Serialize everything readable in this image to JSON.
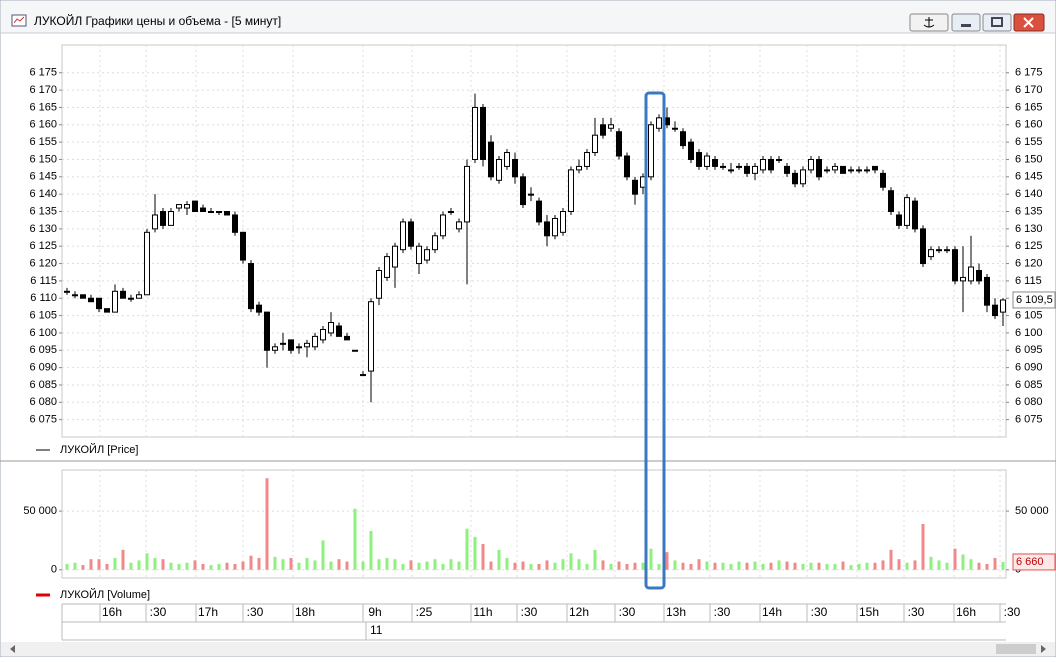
{
  "window": {
    "title": "ЛУКОЙЛ Графики цены и объема - [5 минут]"
  },
  "chart_data": [
    {
      "type": "candlestick",
      "legend": "ЛУКОЙЛ [Price]",
      "color": "#000000",
      "up_color": "#ffffff",
      "down_color": "#000000",
      "open": [
        6112,
        6111,
        6111,
        6110,
        6110,
        6107,
        6106,
        6112,
        6110,
        6110,
        6111,
        6130,
        6135,
        6131,
        6136,
        6136,
        6138,
        6136,
        6135,
        6135,
        6135,
        6134,
        6129,
        6120,
        6108,
        6106,
        6095,
        6097,
        6098,
        6096,
        6096,
        6096,
        6098,
        6100,
        6102,
        6099,
        6095,
        6088,
        6089,
        6110,
        6116,
        6119,
        6124,
        6132,
        6120,
        6121,
        6124,
        6128,
        6135,
        6130,
        6132,
        6150,
        6165,
        6155,
        6144,
        6148,
        6150,
        6145,
        6140,
        6138,
        6132,
        6128,
        6129,
        6135,
        6147,
        6148,
        6152,
        6160,
        6159,
        6158,
        6151,
        6144,
        6142,
        6145,
        6159,
        6162,
        6159,
        6158,
        6155,
        6152,
        6148,
        6150,
        6148,
        6147,
        6148,
        6148,
        6146,
        6147,
        6150,
        6150,
        6148,
        6146,
        6143,
        6147,
        6150,
        6147,
        6147,
        6148,
        6147,
        6147,
        6147,
        6148,
        6146,
        6141,
        6134,
        6131,
        6138,
        6130,
        6122,
        6124,
        6124,
        6124,
        6115,
        6115,
        6118,
        6116,
        6108,
        6106
      ],
      "high": [
        6113,
        6112,
        6111,
        6111,
        6110,
        6107,
        6114,
        6113,
        6111,
        6112,
        6130,
        6140,
        6136,
        6136,
        6137,
        6138,
        6138,
        6137,
        6136,
        6135,
        6135,
        6135,
        6129,
        6121,
        6109,
        6106,
        6097,
        6100,
        6098,
        6097,
        6098,
        6100,
        6102,
        6106,
        6103,
        6100,
        6095,
        6089,
        6110,
        6119,
        6123,
        6126,
        6133,
        6133,
        6126,
        6125,
        6129,
        6135,
        6136,
        6133,
        6150,
        6169,
        6166,
        6157,
        6151,
        6153,
        6152,
        6146,
        6142,
        6139,
        6134,
        6134,
        6136,
        6148,
        6150,
        6153,
        6162,
        6162,
        6162,
        6159,
        6152,
        6145,
        6146,
        6161,
        6163,
        6165,
        6161,
        6159,
        6156,
        6153,
        6152,
        6151,
        6149,
        6149,
        6149,
        6149,
        6149,
        6151,
        6151,
        6151,
        6149,
        6147,
        6148,
        6151,
        6151,
        6148,
        6149,
        6148,
        6148,
        6148,
        6148,
        6148,
        6147,
        6142,
        6135,
        6140,
        6139,
        6131,
        6125,
        6125,
        6125,
        6125,
        6125,
        6128,
        6120,
        6117,
        6110,
        6110
      ],
      "low": [
        6111,
        6110,
        6110,
        6109,
        6106,
        6106,
        6106,
        6110,
        6109,
        6110,
        6111,
        6129,
        6130,
        6131,
        6135,
        6134,
        6135,
        6135,
        6135,
        6134,
        6134,
        6128,
        6120,
        6106,
        6105,
        6090,
        6094,
        6095,
        6094,
        6094,
        6093,
        6095,
        6097,
        6099,
        6099,
        6098,
        6095,
        6088,
        6080,
        6108,
        6115,
        6113,
        6123,
        6124,
        6117,
        6120,
        6123,
        6127,
        6134,
        6129,
        6114,
        6149,
        6148,
        6144,
        6143,
        6147,
        6143,
        6136,
        6138,
        6131,
        6125,
        6127,
        6128,
        6134,
        6146,
        6147,
        6151,
        6156,
        6158,
        6150,
        6144,
        6137,
        6140,
        6144,
        6158,
        6159,
        6158,
        6153,
        6149,
        6147,
        6147,
        6147,
        6147,
        6146,
        6147,
        6145,
        6144,
        6146,
        6146,
        6149,
        6145,
        6142,
        6142,
        6146,
        6144,
        6146,
        6146,
        6146,
        6146,
        6146,
        6146,
        6146,
        6141,
        6134,
        6130,
        6130,
        6129,
        6119,
        6121,
        6123,
        6123,
        6114,
        6106,
        6114,
        6114,
        6106,
        6104,
        6102
      ],
      "close": [
        6112,
        6111,
        6110,
        6109,
        6107,
        6106,
        6112,
        6110,
        6110,
        6111,
        6129,
        6134,
        6131,
        6135,
        6137,
        6137,
        6135,
        6135,
        6135,
        6135,
        6134,
        6129,
        6121,
        6107,
        6106,
        6095,
        6096,
        6097,
        6095,
        6096,
        6097,
        6099,
        6101,
        6103,
        6099,
        6098,
        6095,
        6088,
        6109,
        6118,
        6122,
        6125,
        6132,
        6125,
        6125,
        6124,
        6128,
        6134,
        6135,
        6132,
        6148,
        6165,
        6150,
        6145,
        6150,
        6152,
        6145,
        6137,
        6140,
        6132,
        6128,
        6133,
        6135,
        6147,
        6148,
        6152,
        6157,
        6157,
        6160,
        6151,
        6145,
        6140,
        6145,
        6160,
        6162,
        6160,
        6159,
        6154,
        6150,
        6148,
        6151,
        6148,
        6148,
        6147,
        6148,
        6146,
        6148,
        6150,
        6147,
        6150,
        6146,
        6143,
        6147,
        6150,
        6145,
        6147,
        6148,
        6146,
        6147,
        6147,
        6147,
        6147,
        6142,
        6135,
        6131,
        6139,
        6130,
        6120,
        6124,
        6124,
        6124,
        6115,
        6116,
        6119,
        6115,
        6108,
        6105,
        6109.5
      ],
      "ylim": [
        6070,
        6183
      ],
      "yticks": [
        {
          "value": 6075,
          "label": "6 075"
        },
        {
          "value": 6080,
          "label": "6 080"
        },
        {
          "value": 6085,
          "label": "6 085"
        },
        {
          "value": 6090,
          "label": "6 090"
        },
        {
          "value": 6095,
          "label": "6 095"
        },
        {
          "value": 6100,
          "label": "6 100"
        },
        {
          "value": 6105,
          "label": "6 105"
        },
        {
          "value": 6110,
          "label": "6 110"
        },
        {
          "value": 6115,
          "label": "6 115"
        },
        {
          "value": 6120,
          "label": "6 120"
        },
        {
          "value": 6125,
          "label": "6 125"
        },
        {
          "value": 6130,
          "label": "6 130"
        },
        {
          "value": 6135,
          "label": "6 135"
        },
        {
          "value": 6140,
          "label": "6 140"
        },
        {
          "value": 6145,
          "label": "6 145"
        },
        {
          "value": 6150,
          "label": "6 150"
        },
        {
          "value": 6155,
          "label": "6 155"
        },
        {
          "value": 6160,
          "label": "6 160"
        },
        {
          "value": 6165,
          "label": "6 165"
        },
        {
          "value": 6170,
          "label": "6 170"
        },
        {
          "value": 6175,
          "label": "6 175"
        }
      ],
      "last_label": {
        "value": 6109.5,
        "label": "6 109,5"
      },
      "grid": true
    },
    {
      "type": "bar",
      "legend": "ЛУКОЙЛ [Volume]",
      "color": "#e00000",
      "up_color": "#8ef07e",
      "down_color": "#f08a8a",
      "values": [
        5000,
        6000,
        4000,
        9000,
        9000,
        5000,
        10000,
        17000,
        6000,
        8000,
        14000,
        10000,
        9000,
        6000,
        5000,
        6000,
        8000,
        5000,
        4000,
        5000,
        6000,
        5000,
        7000,
        12000,
        10000,
        78000,
        11000,
        9000,
        10000,
        6000,
        10000,
        8000,
        25000,
        7000,
        9000,
        7000,
        52000,
        7000,
        33000,
        9000,
        10000,
        9000,
        5000,
        8000,
        6000,
        7000,
        9000,
        5000,
        9000,
        7000,
        35000,
        28000,
        22000,
        7000,
        17000,
        10000,
        6000,
        7000,
        5000,
        5000,
        8000,
        6000,
        9000,
        14000,
        9000,
        5000,
        17000,
        8000,
        5000,
        7000,
        5000,
        6000,
        6000,
        18000,
        5000,
        15000,
        8000,
        6000,
        5000,
        9000,
        7000,
        6000,
        6000,
        5000,
        7000,
        6000,
        7000,
        5000,
        6000,
        8000,
        7000,
        6000,
        5000,
        6000,
        6000,
        5000,
        5000,
        7000,
        4000,
        5000,
        6000,
        6000,
        8000,
        17000,
        9000,
        6000,
        8000,
        39000,
        11000,
        8000,
        6000,
        18000,
        13000,
        9000,
        6000,
        5000,
        10000,
        6660
      ],
      "ylim": [
        -7000,
        85000
      ],
      "yticks": [
        0,
        {
          "value": 50000,
          "label": "50 000"
        }
      ],
      "last_label": {
        "value": 6660,
        "label": "6 660"
      },
      "grid": true
    }
  ],
  "time_axis": {
    "labels": [
      "16h",
      ":30",
      "17h",
      ":30",
      "18h",
      "9h",
      ":25",
      "11h",
      ":30",
      "12h",
      ":30",
      "13h",
      ":30",
      "14h",
      ":30",
      "15h",
      ":30",
      "16h",
      ":30"
    ],
    "date": "11"
  }
}
